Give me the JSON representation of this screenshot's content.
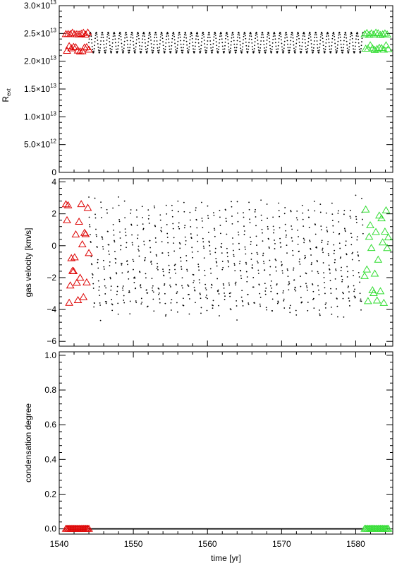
{
  "chart_data": [
    {
      "type": "scatter",
      "panel": "r-ext",
      "ylabel": "R",
      "ylabel_sub": "ext",
      "xlim": [
        1540,
        1585
      ],
      "ylim": [
        0,
        30000000000000.0
      ],
      "yticks": [
        {
          "value": 0,
          "label": "0"
        },
        {
          "value": 5000000000000.0,
          "label": "5.0×10",
          "exp": "12"
        },
        {
          "value": 10000000000000.0,
          "label": "1.0×10",
          "exp": "13"
        },
        {
          "value": 15000000000000.0,
          "label": "1.5×10",
          "exp": "13"
        },
        {
          "value": 20000000000000.0,
          "label": "2.0×10",
          "exp": "13"
        },
        {
          "value": 25000000000000.0,
          "label": "2.5×10",
          "exp": "13"
        },
        {
          "value": 30000000000000.0,
          "label": "3.0×10",
          "exp": "13"
        }
      ],
      "series": [
        {
          "color": "#000000",
          "marker": "dot",
          "x_range": [
            1544,
            1581
          ],
          "min": 21500000000000.0,
          "max": 25200000000000.0,
          "period_yr": 0.8
        },
        {
          "color": "#dd0000",
          "marker": "triangle",
          "x_range": [
            1540.9,
            1544
          ],
          "min": 21500000000000.0,
          "max": 25200000000000.0
        },
        {
          "color": "#33dd33",
          "marker": "triangle",
          "x_range": [
            1581.2,
            1584.4
          ],
          "min": 21800000000000.0,
          "max": 25200000000000.0
        }
      ]
    },
    {
      "type": "scatter",
      "panel": "gas-velocity",
      "ylabel": "gas velocity [km/s]",
      "xlim": [
        1540,
        1585
      ],
      "ylim": [
        -6.3,
        4.2
      ],
      "yticks": [
        {
          "value": -6,
          "label": "−6"
        },
        {
          "value": -4,
          "label": "−4"
        },
        {
          "value": -2,
          "label": "−2"
        },
        {
          "value": 0,
          "label": "0"
        },
        {
          "value": 2,
          "label": "2"
        },
        {
          "value": 4,
          "label": "4"
        }
      ],
      "series": [
        {
          "color": "#000000",
          "marker": "dot",
          "x_range": [
            1544,
            1581
          ],
          "min": -4.9,
          "max": 3.2,
          "period_yr": 0.8
        },
        {
          "color": "#dd0000",
          "marker": "triangle",
          "x_range": [
            1540.9,
            1544
          ],
          "min": -4.3,
          "max": 2.8
        },
        {
          "color": "#33dd33",
          "marker": "triangle",
          "x_range": [
            1581.2,
            1584.4
          ],
          "min": -3.7,
          "max": 2.6
        }
      ]
    },
    {
      "type": "scatter",
      "panel": "condensation-degree",
      "ylabel": "condensation degree",
      "xlabel": "time [yr]",
      "xlim": [
        1540,
        1585
      ],
      "ylim": [
        -0.03,
        1.02
      ],
      "xticks": [
        1540,
        1550,
        1560,
        1570,
        1580
      ],
      "yticks": [
        {
          "value": 0.0,
          "label": "0.0"
        },
        {
          "value": 0.2,
          "label": "0.2"
        },
        {
          "value": 0.4,
          "label": "0.4"
        },
        {
          "value": 0.6,
          "label": "0.6"
        },
        {
          "value": 0.8,
          "label": "0.8"
        },
        {
          "value": 1.0,
          "label": "1.0"
        }
      ],
      "series": [
        {
          "color": "#000000",
          "marker": "dot",
          "x_range": [
            1544,
            1581
          ],
          "value": 0.0
        },
        {
          "color": "#dd0000",
          "marker": "triangle",
          "x_range": [
            1540.9,
            1544
          ],
          "value": 0.0
        },
        {
          "color": "#33dd33",
          "marker": "triangle",
          "x_range": [
            1581.2,
            1584.4
          ],
          "value": 0.0
        }
      ]
    }
  ]
}
